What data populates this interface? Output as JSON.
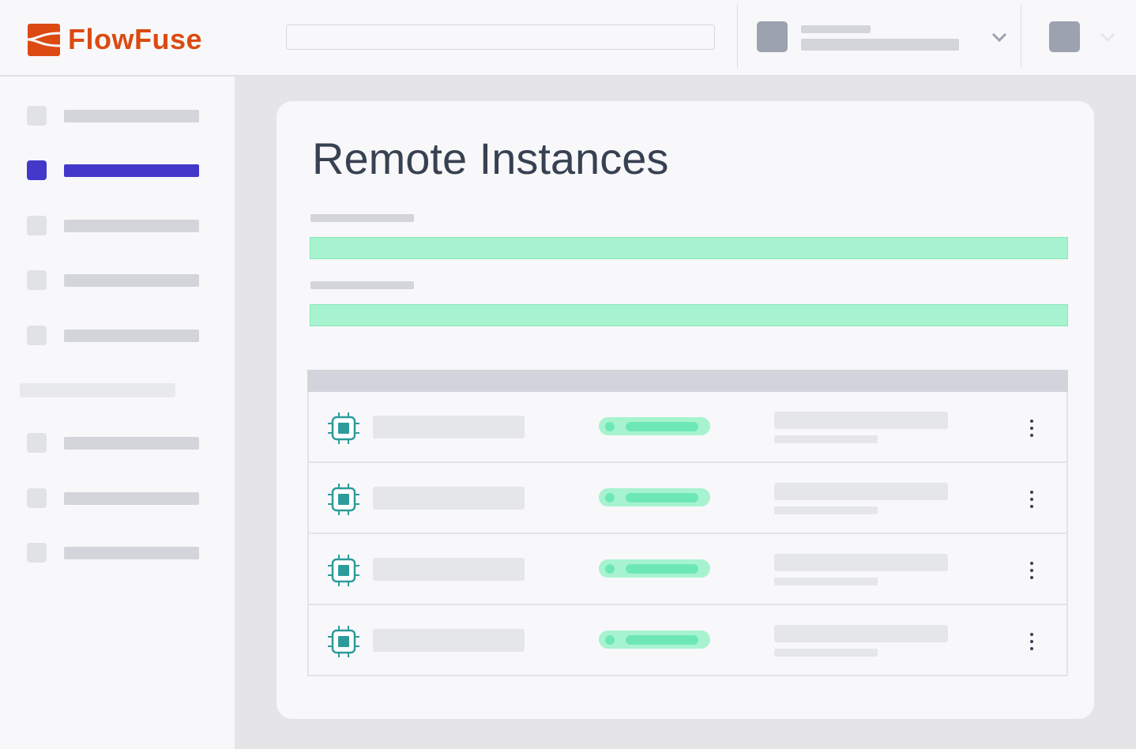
{
  "header": {
    "brand": "FlowFuse",
    "brand_color": "#dc4a12",
    "search": {
      "placeholder": "",
      "value": ""
    },
    "team_switcher": {
      "icon": "chevron-down-icon"
    },
    "user_menu": {
      "icon": "chevron-down-icon"
    }
  },
  "sidebar": {
    "active_color": "#4338ca",
    "items": [
      {
        "active": false
      },
      {
        "active": true
      },
      {
        "active": false
      },
      {
        "active": false
      },
      {
        "active": false
      },
      {
        "section_divider": true
      },
      {
        "active": false
      },
      {
        "active": false
      },
      {
        "active": false
      }
    ]
  },
  "main": {
    "title": "Remote Instances",
    "rows": [
      {
        "icon": "cpu-chip-icon",
        "status_color": "#6ee7b7"
      },
      {
        "icon": "cpu-chip-icon",
        "status_color": "#6ee7b7"
      },
      {
        "icon": "cpu-chip-icon",
        "status_color": "#6ee7b7"
      },
      {
        "icon": "cpu-chip-icon",
        "status_color": "#6ee7b7"
      }
    ],
    "icon_color": "#2d9b9b"
  }
}
